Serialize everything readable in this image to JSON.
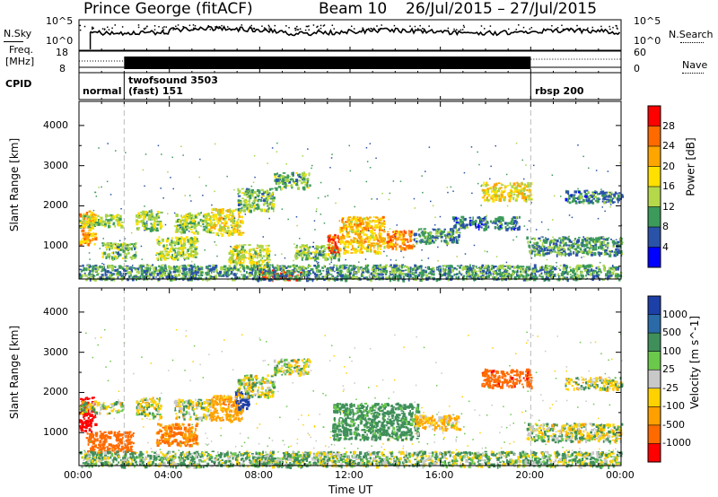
{
  "header": {
    "station": "Prince George (fitACF)",
    "beam": "Beam 10",
    "date_range": "26/Jul/2015 – 27/Jul/2015"
  },
  "strips": {
    "nsky": {
      "label": "N.Sky",
      "left_ticks": [
        "10^5",
        "10^0"
      ],
      "right_ticks": [
        "10^5",
        "10^0"
      ],
      "right_label": "N.Search"
    },
    "freq": {
      "label_line1": "Freq.",
      "label_line2": "[MHz]",
      "left_ticks": [
        "18",
        "8"
      ],
      "right_ticks": [
        "60",
        "0"
      ],
      "right_label": "Nave"
    },
    "cpid": {
      "label": "CPID",
      "segments": [
        {
          "name": "normal",
          "start_h": 0.0,
          "end_h": 2.0
        },
        {
          "name_line1": "twofsound 3503",
          "name_line2": "(fast) 151",
          "start_h": 2.0,
          "end_h": 20.0
        },
        {
          "name": "rbsp 200",
          "start_h": 20.0,
          "end_h": 24.0
        }
      ]
    }
  },
  "panels": {
    "power": {
      "ylabel": "Slant Range [km]",
      "colorbar_label": "Power [dB]",
      "colorbar_ticks": [
        "28",
        "24",
        "20",
        "16",
        "12",
        "8",
        "4"
      ],
      "colorbar_colors": [
        "#ff0000",
        "#ff6a00",
        "#ffa500",
        "#ffe000",
        "#b5d84a",
        "#3c9a5a",
        "#2a52a8",
        "#0000ff"
      ]
    },
    "velocity": {
      "ylabel": "Slant Range [km]",
      "colorbar_label": "Velocity [m s^-1]",
      "colorbar_ticks": [
        "1000",
        "500",
        "100",
        "25",
        "-25",
        "-100",
        "-500",
        "-1000"
      ],
      "colorbar_colors": [
        "#1c3fa8",
        "#2a6aa8",
        "#3f8f5a",
        "#6ac94a",
        "#c8c8c8",
        "#ffd200",
        "#ffa000",
        "#ff6a00",
        "#ff0000"
      ]
    }
  },
  "y_ticks": [
    "4000",
    "3000",
    "2000",
    "1000"
  ],
  "x_ticks": [
    "00:00",
    "04:00",
    "08:00",
    "12:00",
    "16:00",
    "20:00",
    "00:00"
  ],
  "xlabel": "Time UT",
  "chart_data": {
    "type": "heatmap",
    "title": "Prince George (fitACF)   Beam 10   26/Jul/2015 – 27/Jul/2015",
    "xlabel": "Time UT",
    "ylabel": "Slant Range [km]",
    "xlim_hours": [
      0,
      24
    ],
    "ylim_km": [
      180,
      4600
    ],
    "power_scale_db": [
      0,
      30
    ],
    "velocity_scale_ms": [
      -1000,
      1000
    ],
    "power_regions": [
      {
        "t0": 0.0,
        "t1": 0.7,
        "r0": 1050,
        "r1": 1900,
        "db": 22
      },
      {
        "t0": 0.0,
        "t1": 1.9,
        "r0": 1500,
        "r1": 1800,
        "db": 14
      },
      {
        "t0": 1.0,
        "t1": 2.5,
        "r0": 700,
        "r1": 1100,
        "db": 12
      },
      {
        "t0": 2.5,
        "t1": 3.6,
        "r0": 1400,
        "r1": 1900,
        "db": 14
      },
      {
        "t0": 3.4,
        "t1": 5.2,
        "r0": 700,
        "r1": 1250,
        "db": 15
      },
      {
        "t0": 4.2,
        "t1": 5.8,
        "r0": 1350,
        "r1": 1850,
        "db": 14
      },
      {
        "t0": 5.8,
        "t1": 7.2,
        "r0": 1300,
        "r1": 1950,
        "db": 18
      },
      {
        "t0": 6.6,
        "t1": 8.4,
        "r0": 450,
        "r1": 1050,
        "db": 16
      },
      {
        "t0": 7.0,
        "t1": 8.6,
        "r0": 1900,
        "r1": 2450,
        "db": 12
      },
      {
        "t0": 8.6,
        "t1": 10.2,
        "r0": 2450,
        "r1": 2850,
        "db": 12
      },
      {
        "t0": 7.8,
        "t1": 9.9,
        "r0": 180,
        "r1": 420,
        "db": 28
      },
      {
        "t0": 9.5,
        "t1": 11.5,
        "r0": 700,
        "r1": 1050,
        "db": 12
      },
      {
        "t0": 11.0,
        "t1": 11.5,
        "r0": 850,
        "r1": 1300,
        "db": 28
      },
      {
        "t0": 11.5,
        "t1": 13.5,
        "r0": 850,
        "r1": 1750,
        "db": 20
      },
      {
        "t0": 13.6,
        "t1": 14.8,
        "r0": 950,
        "r1": 1400,
        "db": 24
      },
      {
        "t0": 14.8,
        "t1": 16.8,
        "r0": 1100,
        "r1": 1450,
        "db": 10
      },
      {
        "t0": 16.5,
        "t1": 19.5,
        "r0": 1450,
        "r1": 1750,
        "db": 8
      },
      {
        "t0": 17.8,
        "t1": 20.0,
        "r0": 2150,
        "r1": 2600,
        "db": 18
      },
      {
        "t0": 19.8,
        "t1": 24.0,
        "r0": 800,
        "r1": 1250,
        "db": 10
      },
      {
        "t0": 21.5,
        "t1": 24.0,
        "r0": 2100,
        "r1": 2400,
        "db": 8
      },
      {
        "t0": 0.0,
        "t1": 24.0,
        "r0": 180,
        "r1": 550,
        "db": 10
      }
    ],
    "velocity_regions": [
      {
        "t0": 0.0,
        "t1": 0.7,
        "r0": 1050,
        "r1": 1900,
        "v": -1000
      },
      {
        "t0": 0.0,
        "t1": 1.9,
        "r0": 1500,
        "r1": 1800,
        "v": 0
      },
      {
        "t0": 0.3,
        "t1": 2.4,
        "r0": 500,
        "r1": 1050,
        "v": -500
      },
      {
        "t0": 2.5,
        "t1": 3.6,
        "r0": 1400,
        "r1": 1900,
        "v": 0
      },
      {
        "t0": 3.4,
        "t1": 5.2,
        "r0": 700,
        "r1": 1250,
        "v": -300
      },
      {
        "t0": 4.2,
        "t1": 5.8,
        "r0": 1350,
        "r1": 1850,
        "v": 0
      },
      {
        "t0": 5.8,
        "t1": 7.2,
        "r0": 1300,
        "r1": 1950,
        "v": -200
      },
      {
        "t0": 6.9,
        "t1": 7.5,
        "r0": 1600,
        "r1": 2100,
        "v": 1000
      },
      {
        "t0": 7.0,
        "t1": 8.6,
        "r0": 1900,
        "r1": 2450,
        "v": 0
      },
      {
        "t0": 8.6,
        "t1": 10.2,
        "r0": 2450,
        "r1": 2850,
        "v": 0
      },
      {
        "t0": 7.8,
        "t1": 9.9,
        "r0": 180,
        "r1": 420,
        "v": 80
      },
      {
        "t0": 11.2,
        "t1": 15.0,
        "r0": 850,
        "r1": 1750,
        "v": 150
      },
      {
        "t0": 14.8,
        "t1": 16.8,
        "r0": 1100,
        "r1": 1450,
        "v": -100
      },
      {
        "t0": 17.8,
        "t1": 20.0,
        "r0": 2150,
        "r1": 2600,
        "v": -600
      },
      {
        "t0": 19.8,
        "t1": 24.0,
        "r0": 800,
        "r1": 1250,
        "v": 0
      },
      {
        "t0": 21.5,
        "t1": 24.0,
        "r0": 2100,
        "r1": 2400,
        "v": 0
      },
      {
        "t0": 0.0,
        "t1": 24.0,
        "r0": 180,
        "r1": 550,
        "v": 60
      }
    ]
  }
}
